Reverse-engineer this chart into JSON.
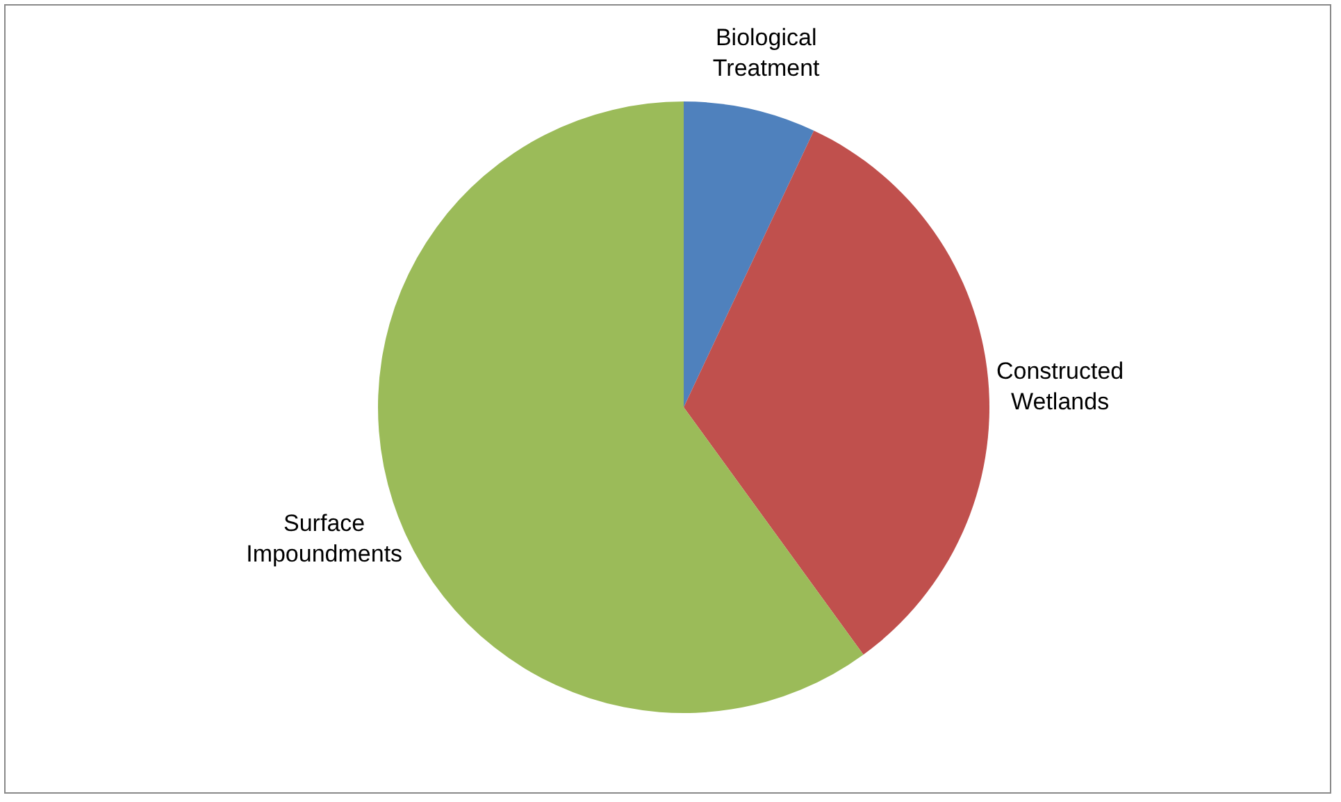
{
  "chart_data": {
    "type": "pie",
    "categories": [
      "Biological Treatment",
      "Constructed Wetlands",
      "Surface Impoundments"
    ],
    "values": [
      7,
      33,
      60
    ],
    "colors": [
      "#4f81bd",
      "#c0504d",
      "#9bbb59"
    ]
  }
}
